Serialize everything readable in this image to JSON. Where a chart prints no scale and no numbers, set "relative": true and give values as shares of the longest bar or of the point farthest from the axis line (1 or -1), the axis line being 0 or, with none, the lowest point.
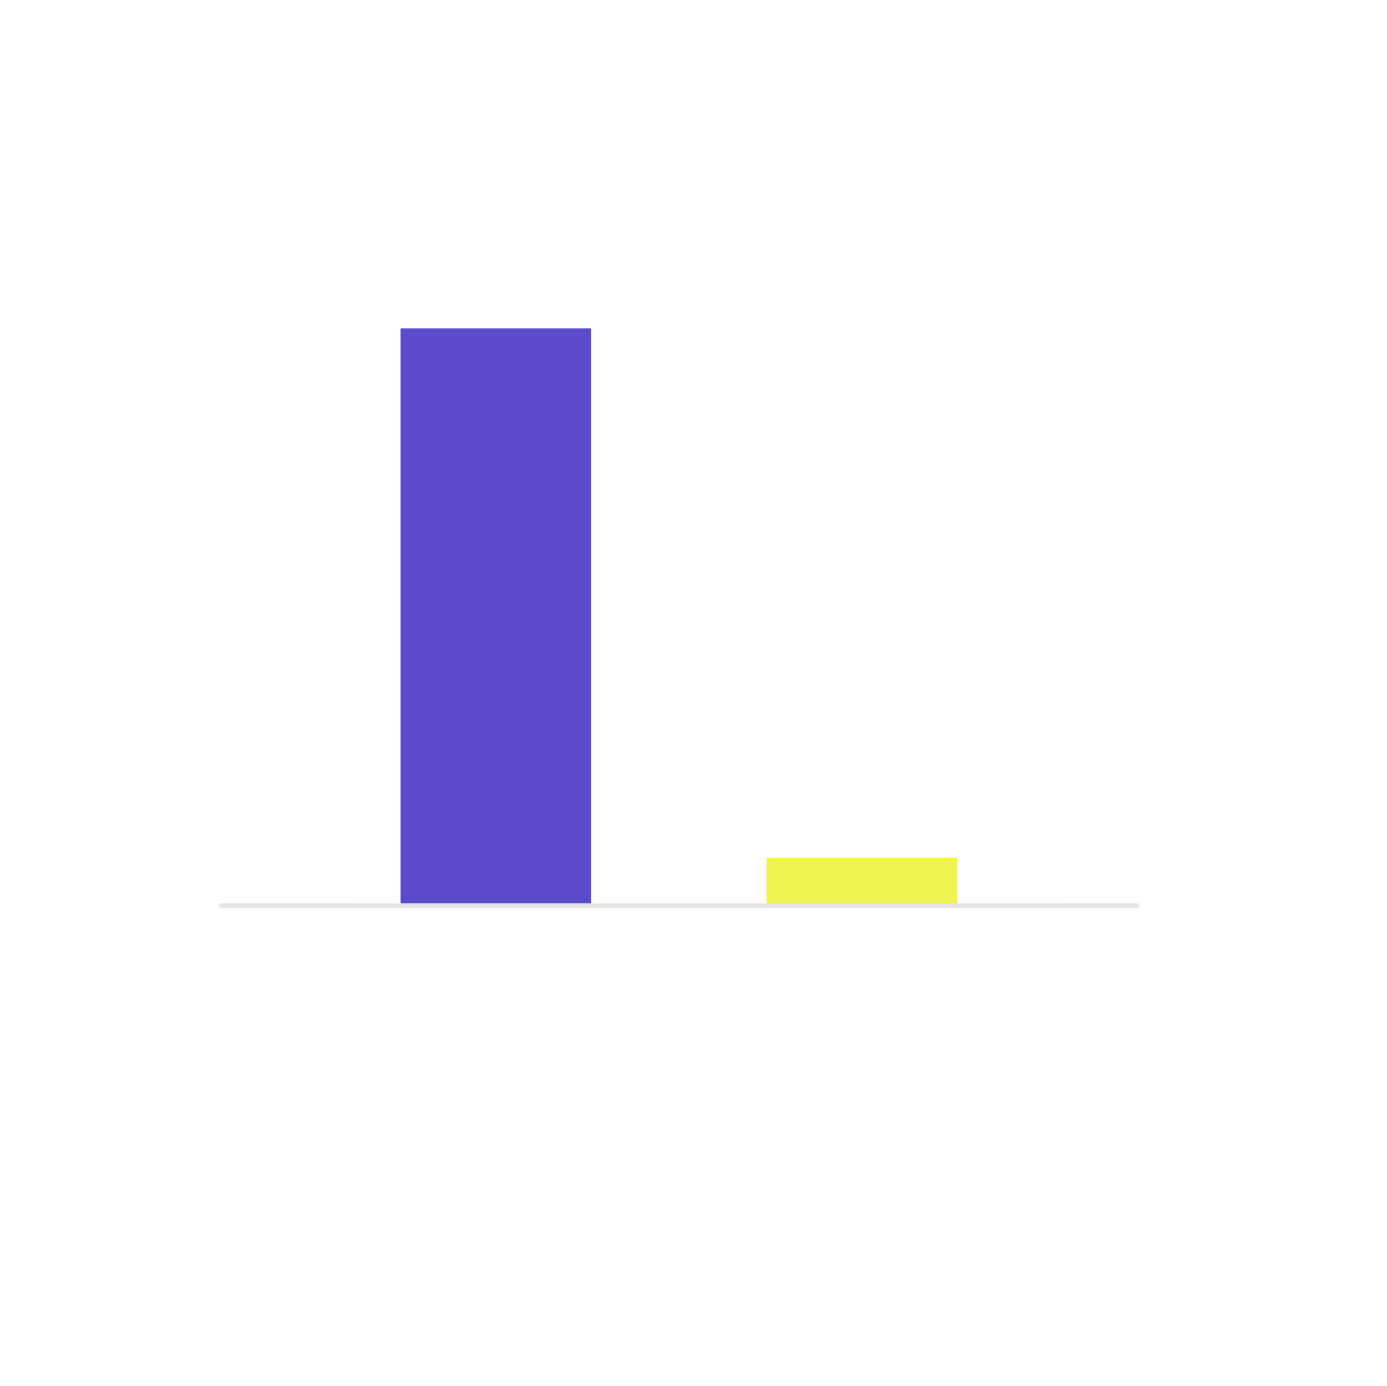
{
  "chart_data": {
    "type": "bar",
    "relative": true,
    "categories": [
      null,
      null
    ],
    "values": [
      1,
      0.083
    ],
    "colors": [
      "#5b4ccb",
      "#f0f050"
    ]
  }
}
